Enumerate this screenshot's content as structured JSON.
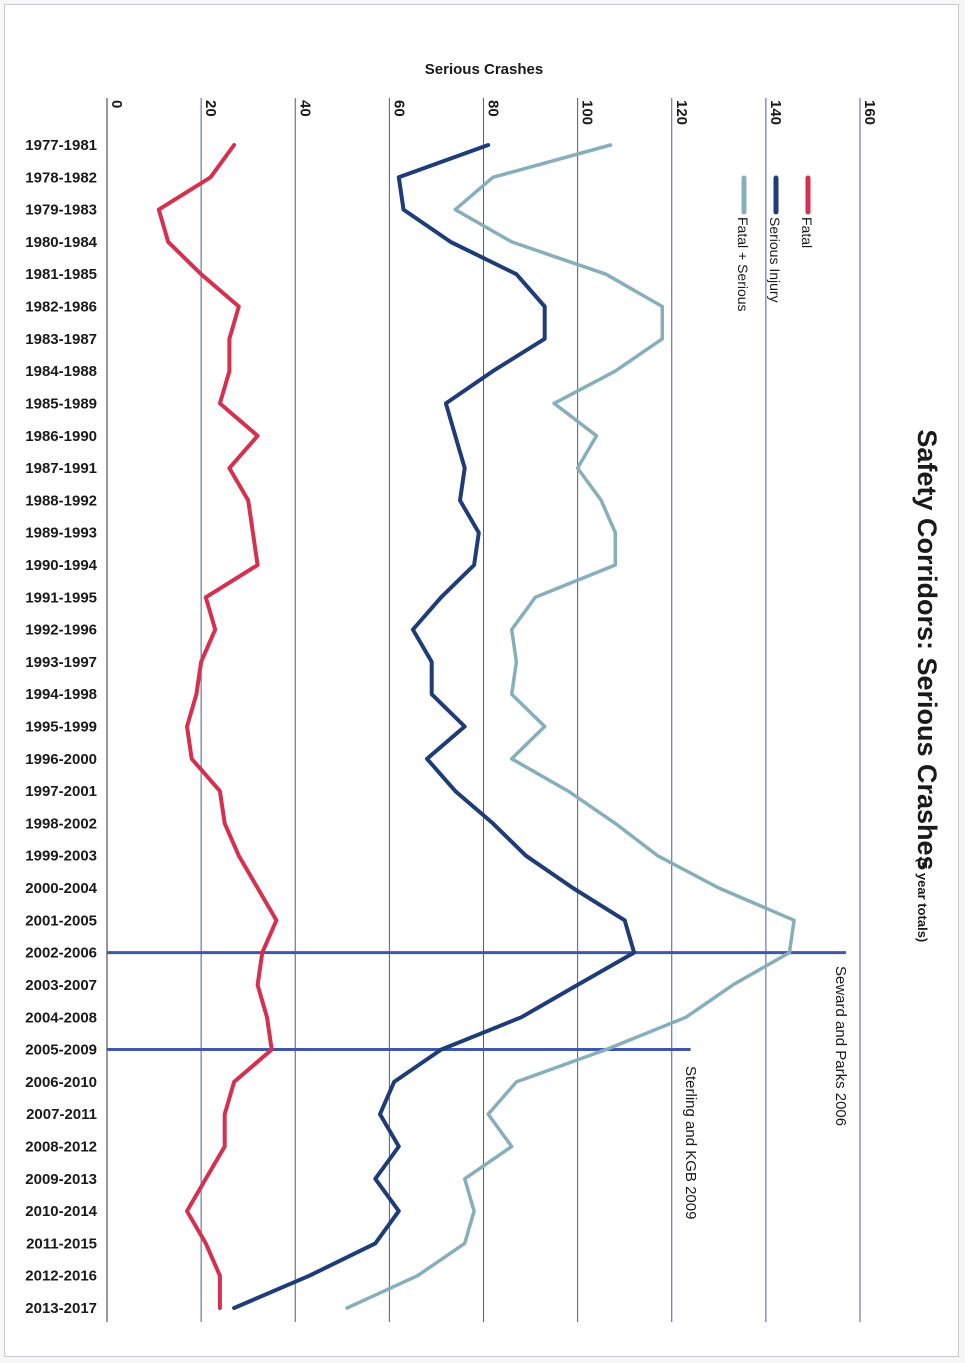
{
  "chart_data": {
    "type": "line",
    "orientation": "rotated-90-clockwise",
    "title": "Safety Corridors:  Serious Crashes",
    "subtitle": "(5 year totals)",
    "ylabel": "Serious Crashes",
    "xlabel": "",
    "ylim": [
      0,
      160
    ],
    "yticks": [
      0,
      20,
      40,
      60,
      80,
      100,
      120,
      140,
      160
    ],
    "grid": true,
    "legend_position": "top-right",
    "categories": [
      "1977-1981",
      "1978-1982",
      "1979-1983",
      "1980-1984",
      "1981-1985",
      "1982-1986",
      "1983-1987",
      "1984-1988",
      "1985-1989",
      "1986-1990",
      "1987-1991",
      "1988-1992",
      "1989-1993",
      "1990-1994",
      "1991-1995",
      "1992-1996",
      "1993-1997",
      "1994-1998",
      "1995-1999",
      "1996-2000",
      "1997-2001",
      "1998-2002",
      "1999-2003",
      "2000-2004",
      "2001-2005",
      "2002-2006",
      "2003-2007",
      "2004-2008",
      "2005-2009",
      "2006-2010",
      "2007-2011",
      "2008-2012",
      "2009-2013",
      "2010-2014",
      "2011-2015",
      "2012-2016",
      "2013-2017"
    ],
    "series": [
      {
        "name": "Fatal",
        "color": "#d6304f",
        "values": [
          27,
          22,
          11,
          13,
          20,
          28,
          26,
          26,
          24,
          32,
          26,
          30,
          31,
          32,
          21,
          23,
          20,
          19,
          17,
          18,
          24,
          25,
          28,
          32,
          36,
          33,
          32,
          34,
          35,
          27,
          25,
          25,
          21,
          17,
          21,
          24,
          24
        ]
      },
      {
        "name": "Serious Injury",
        "color": "#1e3c78",
        "values": [
          81,
          62,
          63,
          73,
          87,
          93,
          93,
          82,
          72,
          74,
          76,
          75,
          79,
          78,
          71,
          65,
          69,
          69,
          76,
          68,
          74,
          82,
          89,
          99,
          110,
          112,
          100,
          88,
          71,
          61,
          58,
          62,
          57,
          62,
          57,
          43,
          27
        ]
      },
      {
        "name": "Fatal + Serious",
        "color": "#86aebb",
        "values": [
          107,
          82,
          74,
          86,
          106,
          118,
          118,
          108,
          95,
          104,
          100,
          105,
          108,
          108,
          91,
          86,
          87,
          86,
          93,
          86,
          98,
          108,
          117,
          130,
          146,
          145,
          133,
          123,
          106,
          87,
          81,
          86,
          76,
          78,
          76,
          66,
          51
        ]
      }
    ],
    "annotations": [
      {
        "category": "2002-2006",
        "label": "Seward and Parks 2006",
        "line_to_value": 157
      },
      {
        "category": "2005-2009",
        "label": "Sterling and KGB 2009",
        "line_to_value": 124
      }
    ]
  }
}
